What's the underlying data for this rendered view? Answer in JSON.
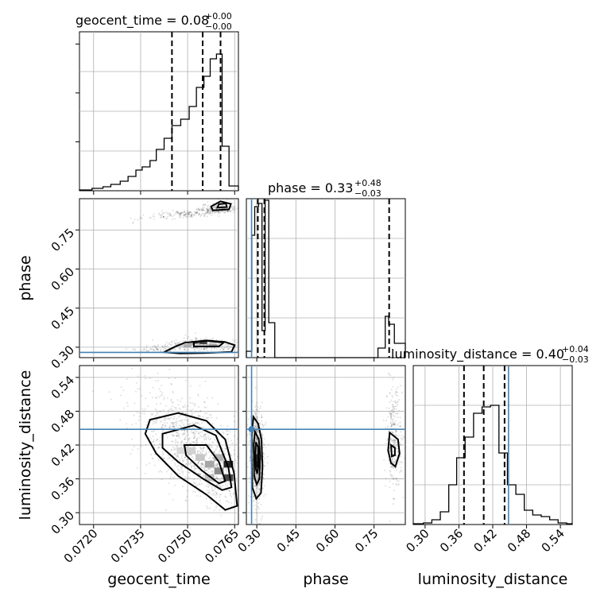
{
  "colors": {
    "truth": "#4682b4",
    "line": "#000000",
    "grid": "#b0b0b0"
  },
  "chart_data": {
    "type": "corner",
    "parameters": [
      "geocent_time",
      "phase",
      "luminosity_distance"
    ],
    "truths": {
      "geocent_time": null,
      "phase": 0.28,
      "luminosity_distance": 0.448
    },
    "titles": [
      {
        "param": "geocent_time",
        "main": "geocent_time = 0.08",
        "sup": "+0.00",
        "sub": "−0.00"
      },
      {
        "param": "phase",
        "main": "phase = 0.33",
        "sup": "+0.48",
        "sub": "−0.03"
      },
      {
        "param": "luminosity_distance",
        "main": "luminosity_distance = 0.40",
        "sup": "+0.04",
        "sub": "−0.03"
      }
    ],
    "ranges": {
      "geocent_time": [
        0.07155,
        0.07662
      ],
      "phase": [
        0.26,
        0.87
      ],
      "luminosity_distance": [
        0.279,
        0.561
      ]
    },
    "ticks": {
      "geocent_time": [
        "0.0720",
        "0.0735",
        "0.0750",
        "0.0765"
      ],
      "phase": [
        "0.30",
        "0.45",
        "0.60",
        "0.75"
      ],
      "luminosity_distance": [
        "0.30",
        "0.36",
        "0.42",
        "0.48",
        "0.54"
      ]
    },
    "tick_values": {
      "geocent_time": [
        0.072,
        0.0735,
        0.075,
        0.0765
      ],
      "phase": [
        0.3,
        0.45,
        0.6,
        0.75
      ],
      "luminosity_distance": [
        0.3,
        0.36,
        0.42,
        0.48,
        0.54
      ]
    },
    "marginals": {
      "geocent_time": {
        "quantiles": [
          0.0745,
          0.07548,
          0.07605
        ],
        "edges": [
          0.07155,
          0.07195,
          0.0723,
          0.07255,
          0.07285,
          0.0731,
          0.07335,
          0.07355,
          0.0738,
          0.074,
          0.07425,
          0.0745,
          0.07478,
          0.07505,
          0.07528,
          0.07552,
          0.07572,
          0.07592,
          0.0761,
          0.07632,
          0.07662
        ],
        "counts": [
          0.005,
          0.015,
          0.025,
          0.04,
          0.06,
          0.09,
          0.13,
          0.15,
          0.19,
          0.26,
          0.33,
          0.41,
          0.45,
          0.53,
          0.65,
          0.72,
          0.83,
          0.86,
          0.28,
          0.03
        ]
      },
      "phase": {
        "quantiles": [
          0.304,
          0.329,
          0.808
        ],
        "edges": [
          0.26,
          0.281,
          0.292,
          0.307,
          0.32,
          0.332,
          0.346,
          0.369,
          0.765,
          0.793,
          0.806,
          0.828,
          0.87
        ],
        "counts": [
          0.04,
          0.77,
          0.95,
          0.97,
          0.17,
          0.99,
          0.22,
          0.0,
          0.06,
          0.26,
          0.21,
          0.09
        ]
      },
      "luminosity_distance": {
        "quantiles": [
          0.369,
          0.404,
          0.441
        ],
        "edges": [
          0.279,
          0.297,
          0.312,
          0.327,
          0.342,
          0.356,
          0.371,
          0.386,
          0.401,
          0.416,
          0.431,
          0.446,
          0.461,
          0.476,
          0.491,
          0.506,
          0.521,
          0.536,
          0.551,
          0.561
        ],
        "counts": [
          0.005,
          0.01,
          0.03,
          0.08,
          0.25,
          0.42,
          0.55,
          0.7,
          0.74,
          0.75,
          0.45,
          0.25,
          0.19,
          0.09,
          0.06,
          0.05,
          0.03,
          0.01,
          0.005
        ]
      }
    },
    "contours_2d": {
      "phase_vs_geocent_time": [
        [
          [
            0.07425,
            0.281
          ],
          [
            0.07475,
            0.276
          ],
          [
            0.0756,
            0.278
          ],
          [
            0.0764,
            0.282
          ],
          [
            0.0765,
            0.308
          ],
          [
            0.0762,
            0.32
          ],
          [
            0.0756,
            0.326
          ],
          [
            0.0749,
            0.317
          ],
          [
            0.0746,
            0.302
          ]
        ],
        [
          [
            0.0752,
            0.303
          ],
          [
            0.076,
            0.303
          ],
          [
            0.07615,
            0.318
          ],
          [
            0.0756,
            0.325
          ],
          [
            0.0752,
            0.318
          ]
        ],
        [
          [
            0.0758,
            0.825
          ],
          [
            0.07632,
            0.829
          ],
          [
            0.07638,
            0.85
          ],
          [
            0.07605,
            0.86
          ],
          [
            0.07575,
            0.84
          ]
        ],
        [
          [
            0.07595,
            0.836
          ],
          [
            0.07625,
            0.838
          ],
          [
            0.07622,
            0.852
          ],
          [
            0.076,
            0.849
          ]
        ]
      ],
      "luminosity_distance_vs_geocent_time": [
        [
          [
            0.0738,
            0.465
          ],
          [
            0.0747,
            0.477
          ],
          [
            0.0756,
            0.463
          ],
          [
            0.0762,
            0.43
          ],
          [
            0.07648,
            0.37
          ],
          [
            0.07658,
            0.312
          ],
          [
            0.0762,
            0.305
          ],
          [
            0.0756,
            0.332
          ],
          [
            0.0747,
            0.365
          ],
          [
            0.074,
            0.405
          ],
          [
            0.07365,
            0.44
          ]
        ],
        [
          [
            0.0742,
            0.44
          ],
          [
            0.0752,
            0.455
          ],
          [
            0.0759,
            0.437
          ],
          [
            0.0763,
            0.38
          ],
          [
            0.0764,
            0.345
          ],
          [
            0.0761,
            0.34
          ],
          [
            0.0755,
            0.36
          ],
          [
            0.0747,
            0.39
          ],
          [
            0.0742,
            0.415
          ]
        ],
        [
          [
            0.0749,
            0.42
          ],
          [
            0.0756,
            0.42
          ],
          [
            0.076,
            0.39
          ],
          [
            0.0762,
            0.356
          ],
          [
            0.076,
            0.352
          ],
          [
            0.07545,
            0.375
          ],
          [
            0.07495,
            0.402
          ]
        ]
      ],
      "luminosity_distance_vs_phase": [
        [
          [
            0.287,
            0.47
          ],
          [
            0.305,
            0.458
          ],
          [
            0.318,
            0.43
          ],
          [
            0.322,
            0.38
          ],
          [
            0.316,
            0.335
          ],
          [
            0.298,
            0.325
          ],
          [
            0.283,
            0.345
          ],
          [
            0.28,
            0.4
          ],
          [
            0.281,
            0.44
          ]
        ],
        [
          [
            0.293,
            0.444
          ],
          [
            0.308,
            0.43
          ],
          [
            0.313,
            0.4
          ],
          [
            0.31,
            0.36
          ],
          [
            0.3,
            0.35
          ],
          [
            0.29,
            0.365
          ],
          [
            0.288,
            0.42
          ]
        ],
        [
          [
            0.297,
            0.425
          ],
          [
            0.306,
            0.415
          ],
          [
            0.307,
            0.385
          ],
          [
            0.302,
            0.37
          ],
          [
            0.296,
            0.378
          ],
          [
            0.294,
            0.405
          ]
        ],
        [
          [
            0.81,
            0.442
          ],
          [
            0.842,
            0.43
          ],
          [
            0.848,
            0.405
          ],
          [
            0.832,
            0.382
          ],
          [
            0.815,
            0.388
          ],
          [
            0.804,
            0.41
          ]
        ],
        [
          [
            0.815,
            0.42
          ],
          [
            0.83,
            0.415
          ],
          [
            0.83,
            0.402
          ],
          [
            0.818,
            0.4
          ]
        ]
      ]
    },
    "density_2d": {
      "phase_vs_geocent_time": [
        {
          "x": 0.0758,
          "y": 0.318,
          "w": 0.18,
          "p": "phase",
          "q": "geocent_time",
          "dx": 0.00024,
          "dy": 0.012
        },
        {
          "x": 0.0755,
          "y": 0.318,
          "w": 0.75
        },
        {
          "x": 0.07525,
          "y": 0.318,
          "w": 0.45
        },
        {
          "x": 0.075,
          "y": 0.306,
          "w": 0.32
        },
        {
          "x": 0.07475,
          "y": 0.306,
          "w": 0.18
        },
        {
          "x": 0.0758,
          "y": 0.306,
          "w": 0.35
        },
        {
          "x": 0.0745,
          "y": 0.296,
          "w": 0.12
        }
      ],
      "luminosity_distance_vs_geocent_time": [
        {
          "x": 0.0763,
          "y": 0.386,
          "w": 0.85
        },
        {
          "x": 0.0763,
          "y": 0.362,
          "w": 0.72
        },
        {
          "x": 0.076,
          "y": 0.374,
          "w": 0.45
        },
        {
          "x": 0.0757,
          "y": 0.386,
          "w": 0.35
        },
        {
          "x": 0.076,
          "y": 0.398,
          "w": 0.3
        },
        {
          "x": 0.0754,
          "y": 0.398,
          "w": 0.22
        },
        {
          "x": 0.0751,
          "y": 0.41,
          "w": 0.18
        },
        {
          "x": 0.0748,
          "y": 0.41,
          "w": 0.14
        },
        {
          "x": 0.0757,
          "y": 0.362,
          "w": 0.25
        }
      ],
      "luminosity_distance_vs_phase": [
        {
          "x": 0.3,
          "y": 0.386,
          "w": 0.92
        },
        {
          "x": 0.3,
          "y": 0.398,
          "w": 0.85
        },
        {
          "x": 0.3,
          "y": 0.374,
          "w": 0.55
        },
        {
          "x": 0.3,
          "y": 0.41,
          "w": 0.45
        },
        {
          "x": 0.291,
          "y": 0.398,
          "w": 0.3
        },
        {
          "x": 0.309,
          "y": 0.398,
          "w": 0.28
        },
        {
          "x": 0.3,
          "y": 0.422,
          "w": 0.22
        },
        {
          "x": 0.3,
          "y": 0.362,
          "w": 0.22
        }
      ]
    },
    "xlabel": "",
    "ylabel": "",
    "grid": true
  }
}
